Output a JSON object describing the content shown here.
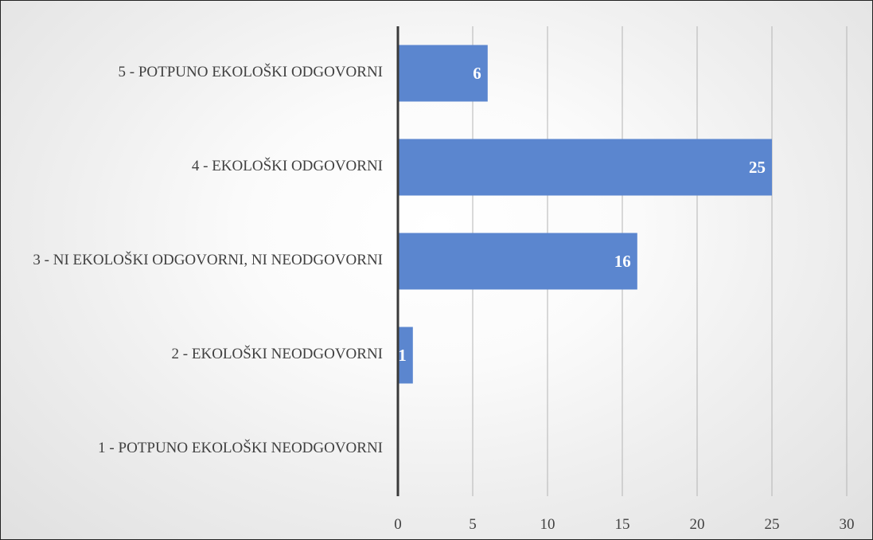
{
  "chart_data": {
    "type": "bar",
    "orientation": "horizontal",
    "categories": [
      "5 - POTPUNO EKOLOŠKI ODGOVORNI",
      "4 - EKOLOŠKI ODGOVORNI",
      "3 - NI EKOLOŠKI ODGOVORNI, NI NEODGOVORNI",
      "2 - EKOLOŠKI NEODGOVORNI",
      "1 - POTPUNO EKOLOŠKI NEODGOVORNI"
    ],
    "values": [
      6,
      25,
      16,
      1,
      0
    ],
    "data_labels": [
      "6",
      "25",
      "16",
      "1",
      ""
    ],
    "x_ticks": [
      "0",
      "5",
      "10",
      "15",
      "20",
      "25",
      "30"
    ],
    "xlim": [
      0,
      30
    ],
    "title": "",
    "xlabel": "",
    "ylabel": "",
    "grid": "vertical",
    "legend": "none",
    "bar_color": "#5b86cf",
    "data_label_color": "#ffffff",
    "axis_color": "#3a3a3a",
    "grid_color": "#b4b4b4"
  }
}
